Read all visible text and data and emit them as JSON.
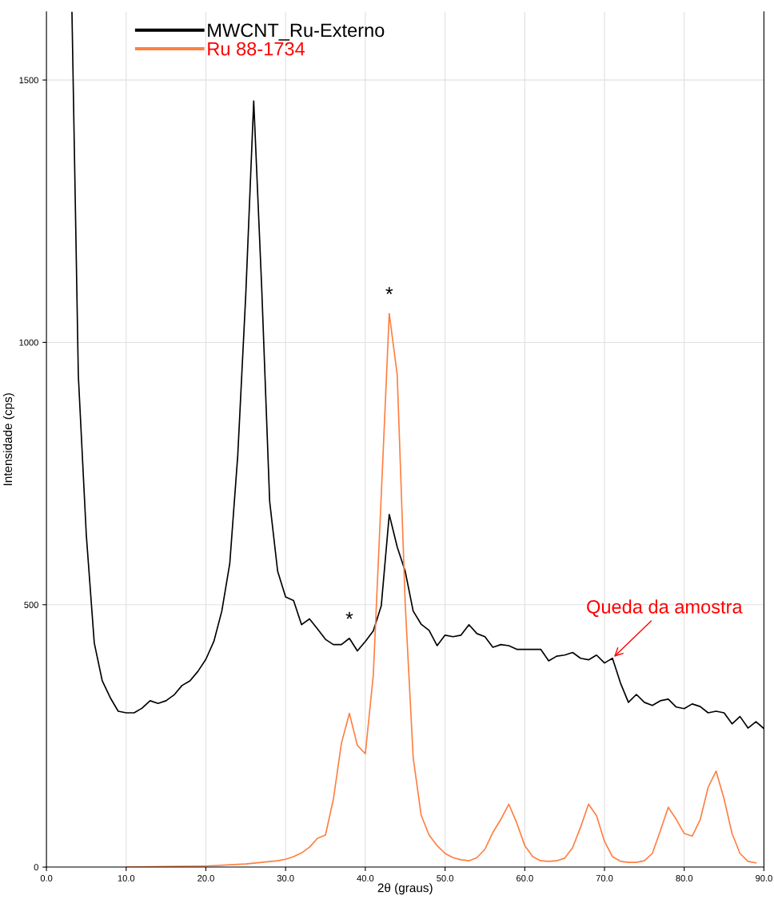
{
  "chart_data": {
    "type": "line",
    "xlabel": "2θ (graus)",
    "ylabel": "Intensidade (cps)",
    "xlim": [
      0,
      90
    ],
    "ylim": [
      0,
      1630
    ],
    "xticks": [
      {
        "value": 0,
        "label": "0.0"
      },
      {
        "value": 10,
        "label": "10.0"
      },
      {
        "value": 20,
        "label": "20.0"
      },
      {
        "value": 30,
        "label": "30.0"
      },
      {
        "value": 40,
        "label": "40.0"
      },
      {
        "value": 50,
        "label": "50.0"
      },
      {
        "value": 60,
        "label": "60.0"
      },
      {
        "value": 70,
        "label": "70.0"
      },
      {
        "value": 80,
        "label": "80.0"
      },
      {
        "value": 90,
        "label": "90.0"
      }
    ],
    "yticks": [
      0,
      500,
      1000,
      1500
    ],
    "grid": true,
    "legend": "top",
    "marker": "none",
    "line_style": "solid",
    "series": [
      {
        "name": "MWCNT_Ru-Externo",
        "color": "#000000",
        "x": [
          3.2,
          4,
          5,
          6,
          7,
          8,
          9,
          10,
          11,
          12,
          13,
          14,
          15,
          16,
          17,
          18,
          19,
          20,
          21,
          22,
          23,
          24,
          25,
          26,
          27,
          28,
          29,
          30,
          31,
          32,
          33,
          34,
          35,
          36,
          37,
          38,
          39,
          40,
          41,
          42,
          43,
          44,
          45,
          46,
          47,
          48,
          49,
          50,
          51,
          52,
          53,
          54,
          55,
          56,
          57,
          58,
          59,
          60,
          61,
          62,
          63,
          64,
          65,
          66,
          67,
          68,
          69,
          70,
          71,
          72,
          73,
          74,
          75,
          76,
          77,
          78,
          79,
          80,
          81,
          82,
          83,
          84,
          85,
          86,
          87,
          88,
          89,
          90
        ],
        "values": [
          1630,
          937,
          633,
          427,
          355,
          323,
          297,
          294,
          294,
          303,
          317,
          312,
          317,
          328,
          346,
          355,
          373,
          396,
          430,
          488,
          579,
          785,
          1090,
          1460,
          1105,
          697,
          564,
          515,
          508,
          462,
          473,
          454,
          434,
          424,
          424,
          436,
          412,
          430,
          450,
          498,
          672,
          610,
          564,
          488,
          463,
          451,
          422,
          442,
          439,
          442,
          462,
          445,
          439,
          419,
          424,
          422,
          415,
          415,
          415,
          415,
          393,
          402,
          404,
          409,
          398,
          395,
          404,
          389,
          398,
          351,
          314,
          329,
          314,
          308,
          317,
          320,
          305,
          302,
          311,
          306,
          294,
          297,
          294,
          273,
          287,
          265,
          277,
          264
        ]
      },
      {
        "name": "Ru 88-1734",
        "color": "#ff7f41",
        "x": [
          10,
          15,
          20,
          25,
          29,
          30,
          31,
          32,
          33,
          34,
          35,
          36,
          37,
          38,
          39,
          40,
          41,
          42,
          43,
          44,
          45,
          46,
          47,
          48,
          49,
          50,
          51,
          52,
          53,
          54,
          55,
          56,
          57,
          58,
          59,
          60,
          61,
          62,
          63,
          64,
          65,
          66,
          67,
          68,
          69,
          70,
          71,
          72,
          73,
          74,
          75,
          76,
          77,
          78,
          79,
          80,
          81,
          82,
          83,
          84,
          85,
          86,
          87,
          88,
          89
        ],
        "values": [
          0,
          1,
          2,
          6,
          12,
          15,
          20,
          27,
          38,
          55,
          61,
          130,
          236,
          293,
          232,
          216,
          366,
          709,
          1055,
          938,
          503,
          209,
          99,
          61,
          41,
          26,
          18,
          14,
          12,
          18,
          34,
          66,
          91,
          120,
          84,
          41,
          20,
          12,
          11,
          12,
          17,
          37,
          76,
          120,
          98,
          49,
          20,
          11,
          9,
          9,
          12,
          26,
          69,
          114,
          91,
          64,
          59,
          90,
          152,
          183,
          130,
          64,
          26,
          11,
          8
        ]
      }
    ],
    "annotations": [
      {
        "text": "*",
        "x": 38,
        "y": 436
      },
      {
        "text": "*",
        "x": 43,
        "y": 1055
      },
      {
        "text": "Queda da amostra",
        "x": 71,
        "y": 398
      }
    ]
  }
}
